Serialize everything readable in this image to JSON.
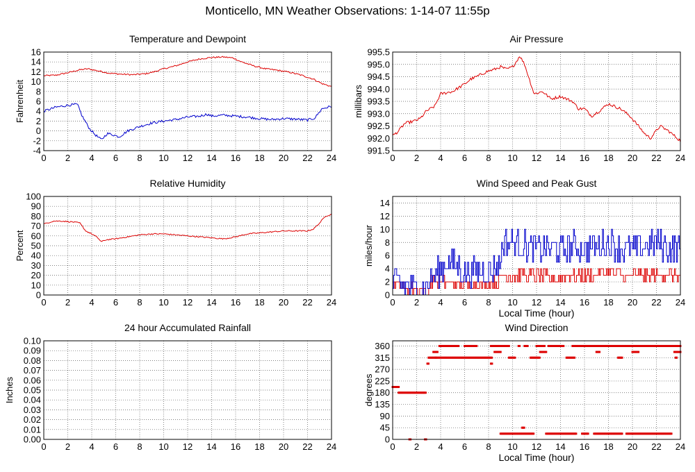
{
  "page": {
    "title": "Monticello, MN Weather Observations: 1-14-07 11:55p"
  },
  "colors": {
    "series_red": "#dd0000",
    "series_blue": "#0000cc",
    "grid": "#555555",
    "frame": "#000000"
  },
  "chart_data": [
    {
      "id": "temp",
      "type": "line",
      "title": "Temperature and Dewpoint",
      "xlabel": "",
      "ylabel": "Fahrenheit",
      "xlim": [
        0,
        24
      ],
      "ylim": [
        -4,
        16
      ],
      "xticks": [
        0,
        2,
        4,
        6,
        8,
        10,
        12,
        14,
        16,
        18,
        20,
        22,
        24
      ],
      "yticks": [
        -4,
        -2,
        0,
        2,
        4,
        6,
        8,
        10,
        12,
        14,
        16
      ],
      "grid": true,
      "series": [
        {
          "color": "red",
          "noise": 0.15,
          "style": "line",
          "x": [
            0,
            1,
            2,
            3,
            3.7,
            4.5,
            5.5,
            6.5,
            7.5,
            8.5,
            9.2,
            10,
            11,
            12,
            13,
            14,
            15,
            15.8,
            16.5,
            17.5,
            18.5,
            19.5,
            20.5,
            21.5,
            22.5,
            23.2,
            24
          ],
          "y": [
            11.2,
            11.3,
            11.8,
            12.4,
            12.6,
            12.2,
            11.7,
            11.5,
            11.4,
            11.6,
            12.0,
            12.6,
            13.2,
            14.0,
            14.6,
            14.9,
            15.0,
            14.8,
            14.0,
            13.2,
            12.6,
            12.3,
            11.9,
            11.3,
            10.5,
            9.6,
            9.0
          ]
        },
        {
          "color": "blue",
          "noise": 0.25,
          "style": "line",
          "x": [
            0,
            1,
            2,
            2.8,
            3.2,
            3.8,
            4.3,
            4.8,
            5.3,
            5.8,
            6.3,
            7,
            8,
            9,
            10,
            11,
            12,
            13,
            13.6,
            14,
            15,
            16,
            17,
            18,
            19,
            20,
            21,
            22,
            22.6,
            23.2,
            24
          ],
          "y": [
            4.0,
            4.8,
            5.2,
            5.4,
            3.0,
            0.5,
            -0.8,
            -1.8,
            -0.5,
            -0.8,
            -1.2,
            0.0,
            0.9,
            1.6,
            2.0,
            2.3,
            2.8,
            3.0,
            3.4,
            3.0,
            3.2,
            3.0,
            2.8,
            2.5,
            2.3,
            2.5,
            2.4,
            2.2,
            2.6,
            4.5,
            5.0
          ]
        }
      ]
    },
    {
      "id": "pres",
      "type": "line",
      "title": "Air Pressure",
      "xlabel": "",
      "ylabel": "millibars",
      "xlim": [
        0,
        24
      ],
      "ylim": [
        991.5,
        995.5
      ],
      "xticks": [
        0,
        2,
        4,
        6,
        8,
        10,
        12,
        14,
        16,
        18,
        20,
        22,
        24
      ],
      "yticks": [
        991.5,
        992.0,
        992.5,
        993.0,
        993.5,
        994.0,
        994.5,
        995.0,
        995.5
      ],
      "ytick_labels": [
        "991.5",
        "992.0",
        "992.5",
        "993.0",
        "993.5",
        "994.0",
        "994.5",
        "995.0",
        "995.5"
      ],
      "grid": true,
      "series": [
        {
          "color": "red",
          "noise": 0.06,
          "style": "line",
          "x": [
            0,
            0.5,
            1,
            1.8,
            2.3,
            2.8,
            3.5,
            4.0,
            5.0,
            6.0,
            6.5,
            7.0,
            7.8,
            8.5,
            9.0,
            9.5,
            10.0,
            10.3,
            10.6,
            11.0,
            11.4,
            11.8,
            12.5,
            13.2,
            14.0,
            15.0,
            15.5,
            16.0,
            16.6,
            17.2,
            18.0,
            19.0,
            19.8,
            20.5,
            21.0,
            21.5,
            22.3,
            23.0,
            24.0
          ],
          "y": [
            992.1,
            992.3,
            992.6,
            992.7,
            992.8,
            993.1,
            993.3,
            993.8,
            993.9,
            994.2,
            994.4,
            994.5,
            994.7,
            994.8,
            994.9,
            994.8,
            994.9,
            995.1,
            995.35,
            995.0,
            994.4,
            993.8,
            993.9,
            993.6,
            993.7,
            993.5,
            993.2,
            993.2,
            992.9,
            993.1,
            993.4,
            993.2,
            992.9,
            992.5,
            992.2,
            992.0,
            992.5,
            992.3,
            991.9
          ]
        }
      ]
    },
    {
      "id": "rh",
      "type": "line",
      "title": "Relative Humidity",
      "xlabel": "",
      "ylabel": "Percent",
      "xlim": [
        0,
        24
      ],
      "ylim": [
        0,
        100
      ],
      "xticks": [
        0,
        2,
        4,
        6,
        8,
        10,
        12,
        14,
        16,
        18,
        20,
        22,
        24
      ],
      "yticks": [
        0,
        10,
        20,
        30,
        40,
        50,
        60,
        70,
        80,
        90,
        100
      ],
      "grid": true,
      "series": [
        {
          "color": "red",
          "noise": 0.6,
          "style": "line",
          "x": [
            0,
            0.8,
            1.5,
            2.5,
            3.0,
            3.5,
            4.0,
            4.5,
            4.8,
            5.2,
            6.0,
            7.0,
            8.0,
            9.0,
            10.0,
            11.0,
            12.0,
            13.0,
            14.0,
            15.0,
            16.0,
            17.0,
            18.0,
            19.0,
            20.0,
            21.0,
            22.0,
            22.5,
            23.0,
            23.5,
            24.0
          ],
          "y": [
            72,
            75,
            75,
            74,
            73,
            65,
            62,
            58,
            54,
            56,
            57,
            59,
            61,
            62,
            62,
            61,
            60,
            59,
            58,
            57,
            59,
            62,
            63,
            64,
            65,
            65,
            65,
            67,
            73,
            80,
            82
          ]
        }
      ]
    },
    {
      "id": "wind",
      "type": "line",
      "title": "Wind Speed and Peak Gust",
      "xlabel": "Local Time (hour)",
      "ylabel": "miles/hour",
      "xlim": [
        0,
        24
      ],
      "ylim": [
        0,
        15
      ],
      "xticks": [
        0,
        2,
        4,
        6,
        8,
        10,
        12,
        14,
        16,
        18,
        20,
        22,
        24
      ],
      "yticks": [
        0,
        2,
        4,
        6,
        8,
        10,
        12,
        14
      ],
      "grid": true,
      "series": [
        {
          "color": "red",
          "noise": 0.9,
          "style": "step",
          "x": [
            0,
            1,
            2,
            2.8,
            3.2,
            3.8,
            4.5,
            6.0,
            7.5,
            8.8,
            9.3,
            10.5,
            12.0,
            13.5,
            15.0,
            16.5,
            18.0,
            19.5,
            21.0,
            22.5,
            24.0
          ],
          "y": [
            2,
            1,
            1,
            0,
            2,
            2,
            2,
            1.5,
            1.5,
            2,
            3,
            3,
            3,
            2.5,
            3,
            3,
            3.5,
            3,
            3,
            3,
            3
          ]
        },
        {
          "color": "blue",
          "noise": 2.2,
          "style": "step",
          "x": [
            0,
            1,
            2,
            2.8,
            3.2,
            3.8,
            4.5,
            5.2,
            6.0,
            7.0,
            8.0,
            8.9,
            9.2,
            10.0,
            11.0,
            12.0,
            13.0,
            14.0,
            15.0,
            16.0,
            17.0,
            18.0,
            19.0,
            20.0,
            21.0,
            22.0,
            23.0,
            24.0
          ],
          "y": [
            2,
            1.5,
            1,
            1,
            2.5,
            3.5,
            5.0,
            4.5,
            3.5,
            3.5,
            3.5,
            4.5,
            8,
            8,
            7.5,
            7,
            7,
            7,
            7.5,
            7,
            7.5,
            8,
            7,
            7,
            7.5,
            8,
            7,
            7
          ]
        }
      ]
    },
    {
      "id": "rain",
      "type": "line",
      "title": "24 hour Accumulated Rainfall",
      "xlabel": "",
      "ylabel": "Inches",
      "xlim": [
        0,
        24
      ],
      "ylim": [
        0,
        0.1
      ],
      "xticks": [
        0,
        2,
        4,
        6,
        8,
        10,
        12,
        14,
        16,
        18,
        20,
        22,
        24
      ],
      "yticks": [
        0,
        0.01,
        0.02,
        0.03,
        0.04,
        0.05,
        0.06,
        0.07,
        0.08,
        0.09,
        0.1
      ],
      "ytick_labels": [
        "0.00",
        "0.01",
        "0.02",
        "0.03",
        "0.04",
        "0.05",
        "0.06",
        "0.07",
        "0.08",
        "0.09",
        "0.10"
      ],
      "grid": true,
      "series": [
        {
          "color": "red",
          "noise": 0,
          "style": "line",
          "x": [
            0,
            24
          ],
          "y": [
            0,
            0
          ]
        }
      ]
    },
    {
      "id": "dir",
      "type": "scatter",
      "title": "Wind Direction",
      "xlabel": "Local Time (hour)",
      "ylabel": "degrees",
      "xlim": [
        0,
        24
      ],
      "ylim": [
        0,
        380
      ],
      "xticks": [
        0,
        2,
        4,
        6,
        8,
        10,
        12,
        14,
        16,
        18,
        20,
        22,
        24
      ],
      "yticks": [
        0,
        45,
        90,
        135,
        180,
        225,
        270,
        315,
        360
      ],
      "grid": true,
      "series": [
        {
          "color": "red",
          "noise": 0,
          "style": "points",
          "segments": [
            [
              0.0,
              0.5,
              202
            ],
            [
              0.5,
              2.8,
              180
            ],
            [
              1.4,
              1.5,
              0
            ],
            [
              2.7,
              2.8,
              0
            ],
            [
              2.9,
              3.0,
              292
            ],
            [
              3.0,
              3.6,
              315
            ],
            [
              3.4,
              3.8,
              337
            ],
            [
              3.6,
              8.3,
              315
            ],
            [
              3.9,
              5.5,
              360
            ],
            [
              6.0,
              7.0,
              360
            ],
            [
              8.2,
              8.3,
              292
            ],
            [
              8.2,
              9.7,
              360
            ],
            [
              8.5,
              9.0,
              337
            ],
            [
              9.0,
              11.8,
              22
            ],
            [
              9.7,
              10.2,
              315
            ],
            [
              10.5,
              10.6,
              360
            ],
            [
              10.8,
              11.0,
              45
            ],
            [
              11.0,
              11.3,
              360
            ],
            [
              11.5,
              12.3,
              315
            ],
            [
              12.0,
              12.7,
              360
            ],
            [
              12.3,
              12.8,
              337
            ],
            [
              12.8,
              15.3,
              22
            ],
            [
              13.0,
              14.3,
              360
            ],
            [
              14.5,
              15.2,
              315
            ],
            [
              15.0,
              24.0,
              360
            ],
            [
              15.8,
              16.3,
              22
            ],
            [
              16.8,
              19.2,
              22
            ],
            [
              17.0,
              17.3,
              337
            ],
            [
              18.8,
              19.2,
              315
            ],
            [
              19.5,
              23.3,
              22
            ],
            [
              20.0,
              20.5,
              337
            ],
            [
              23.5,
              24.0,
              337
            ],
            [
              23.6,
              23.7,
              315
            ]
          ]
        }
      ]
    }
  ]
}
